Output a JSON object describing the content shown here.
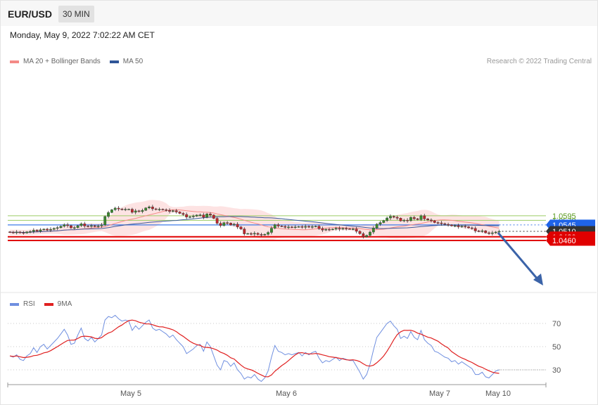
{
  "header": {
    "symbol": "EUR/USD",
    "timeframe": "30 MIN",
    "datetime": "Monday, May 9, 2022 7:02:22 AM CET",
    "credit": "Research © 2022 Trading Central"
  },
  "colors": {
    "ma20": "#f48a86",
    "band_fill": "#fde3e3",
    "ma50": "#3d5a9a",
    "bull": "#3a8a2e",
    "bear": "#c0262c",
    "resistance": "#9ccc65",
    "pivot": "#3f7be8",
    "support": "#e00000",
    "last": "#333333",
    "arrow": "#3b63a8",
    "rsi": "#6f8fe0",
    "rsi_ma": "#e02020"
  },
  "chart_data": [
    {
      "type": "candlestick",
      "legend": [
        {
          "name": "MA 20 + Bollinger Bands",
          "color": "#f48a86"
        },
        {
          "name": "MA 50",
          "color": "#2f5597"
        }
      ],
      "x_labels": [
        "May 5",
        "May 6",
        "May 7",
        "May 10"
      ],
      "levels": [
        {
          "value": 1.0595,
          "label": "1.0595",
          "kind": "resistance"
        },
        {
          "value": 1.057,
          "label": "1.0570",
          "kind": "resistance"
        },
        {
          "value": 1.0545,
          "label": "1.0545",
          "kind": "pivot"
        },
        {
          "value": 1.051,
          "label": "1.0510",
          "kind": "last"
        },
        {
          "value": 1.048,
          "label": "1.0480",
          "kind": "support"
        },
        {
          "value": 1.046,
          "label": "1.0460",
          "kind": "support"
        }
      ],
      "close": [
        1.0505,
        1.0504,
        1.0506,
        1.0503,
        1.0501,
        1.0507,
        1.0509,
        1.0516,
        1.0511,
        1.0518,
        1.0522,
        1.0517,
        1.0521,
        1.0526,
        1.053,
        1.0538,
        1.0546,
        1.0541,
        1.0529,
        1.053,
        1.0541,
        1.0551,
        1.0539,
        1.0537,
        1.0541,
        1.0536,
        1.054,
        1.0545,
        1.0591,
        1.0613,
        1.0628,
        1.0637,
        1.0632,
        1.063,
        1.0631,
        1.0631,
        1.0614,
        1.0622,
        1.0618,
        1.0625,
        1.0638,
        1.0644,
        1.0633,
        1.063,
        1.0631,
        1.0628,
        1.0625,
        1.0619,
        1.0623,
        1.0616,
        1.0608,
        1.0602,
        1.0588,
        1.059,
        1.0593,
        1.0599,
        1.06,
        1.0587,
        1.0605,
        1.0599,
        1.0581,
        1.0554,
        1.0542,
        1.0557,
        1.0555,
        1.0545,
        1.0549,
        1.0534,
        1.0523,
        1.0496,
        1.0498,
        1.0495,
        1.0499,
        1.0493,
        1.049,
        1.0494,
        1.0504,
        1.0527,
        1.0546,
        1.0539,
        1.0537,
        1.0532,
        1.0534,
        1.0533,
        1.0534,
        1.0536,
        1.0532,
        1.0537,
        1.0533,
        1.0536,
        1.0538,
        1.0525,
        1.0517,
        1.0521,
        1.052,
        1.0522,
        1.0527,
        1.0522,
        1.0526,
        1.0524,
        1.0523,
        1.0523,
        1.051,
        1.0497,
        1.048,
        1.0488,
        1.0506,
        1.0528,
        1.0549,
        1.0558,
        1.0569,
        1.0583,
        1.0592,
        1.0587,
        1.0582,
        1.0567,
        1.0571,
        1.0568,
        1.0586,
        1.0579,
        1.0574,
        1.0595,
        1.0578,
        1.0572,
        1.0568,
        1.0558,
        1.0556,
        1.0552,
        1.0548,
        1.0545,
        1.054,
        1.0541,
        1.0535,
        1.0538,
        1.0535,
        1.0529,
        1.0526,
        1.0512,
        1.0511,
        1.0513,
        1.0502,
        1.0498,
        1.0502,
        1.0506,
        1.051
      ],
      "rsi": [
        42,
        41,
        43,
        39,
        38,
        42,
        44,
        49,
        45,
        50,
        52,
        48,
        51,
        54,
        57,
        61,
        65,
        60,
        52,
        53,
        60,
        66,
        57,
        55,
        58,
        54,
        57,
        60,
        73,
        76,
        75,
        77,
        74,
        72,
        73,
        72,
        64,
        68,
        65,
        68,
        71,
        73,
        66,
        64,
        65,
        63,
        61,
        58,
        60,
        56,
        53,
        50,
        44,
        46,
        48,
        51,
        52,
        46,
        54,
        50,
        42,
        34,
        30,
        38,
        37,
        33,
        36,
        30,
        27,
        22,
        24,
        23,
        26,
        22,
        20,
        23,
        29,
        41,
        51,
        46,
        45,
        43,
        44,
        43,
        44,
        45,
        42,
        45,
        43,
        45,
        46,
        40,
        36,
        38,
        37,
        39,
        41,
        38,
        40,
        39,
        38,
        38,
        33,
        28,
        22,
        26,
        35,
        47,
        58,
        62,
        66,
        70,
        72,
        68,
        65,
        57,
        59,
        57,
        63,
        58,
        56,
        64,
        56,
        53,
        51,
        46,
        45,
        43,
        41,
        40,
        37,
        38,
        35,
        37,
        35,
        33,
        31,
        26,
        26,
        28,
        24,
        23,
        26,
        29,
        30
      ],
      "rsi_ticks": [
        70,
        50,
        30
      ]
    }
  ]
}
